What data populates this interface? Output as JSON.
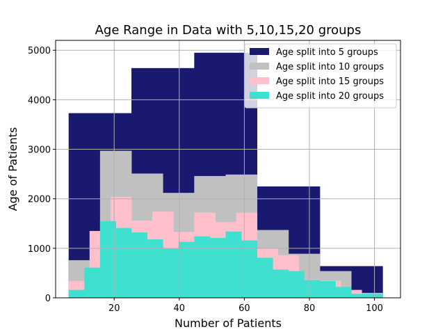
{
  "chart_data": {
    "type": "bar",
    "title": "Age Range in Data with 5,10,15,20 groups",
    "xlabel": "Number of Patients",
    "ylabel": "Age of Patients",
    "xlim": [
      2,
      108
    ],
    "ylim": [
      0,
      5200
    ],
    "xticks": [
      20,
      40,
      60,
      80,
      100
    ],
    "yticks": [
      0,
      1000,
      2000,
      3000,
      4000,
      5000
    ],
    "grid": true,
    "legend_position": "top-right",
    "series": [
      {
        "name": "Age split into 5 groups",
        "color": "#191970",
        "edges": [
          6,
          25.3,
          44.6,
          63.9,
          83.2,
          102.5
        ],
        "values": [
          3730,
          4640,
          4950,
          2250,
          640
        ]
      },
      {
        "name": "Age split into 10 groups",
        "color": "#c0c0c0",
        "edges": [
          6,
          15.65,
          25.3,
          34.95,
          44.6,
          54.25,
          63.9,
          73.55,
          83.2,
          92.85,
          102.5
        ],
        "values": [
          760,
          2970,
          2510,
          2120,
          2460,
          2490,
          1370,
          890,
          540,
          100
        ]
      },
      {
        "name": "Age split into 15 groups",
        "color": "#ffc0cb",
        "edges": [
          6,
          12.43,
          18.87,
          25.3,
          31.73,
          38.17,
          44.6,
          51.03,
          57.47,
          63.9,
          70.33,
          76.77,
          83.2,
          89.63,
          96.07,
          102.5
        ],
        "values": [
          340,
          1350,
          2040,
          1560,
          1740,
          1330,
          1720,
          1530,
          1720,
          1000,
          860,
          370,
          350,
          160,
          80
        ]
      },
      {
        "name": "Age split into 20 groups",
        "color": "#40e0d0",
        "edges": [
          6,
          10.83,
          15.65,
          20.48,
          25.3,
          30.13,
          34.95,
          39.78,
          44.6,
          49.43,
          54.25,
          59.08,
          63.9,
          68.73,
          73.55,
          78.38,
          83.2,
          88.03,
          92.85,
          97.68,
          102.5
        ],
        "values": [
          160,
          610,
          1550,
          1410,
          1320,
          1180,
          990,
          1130,
          1240,
          1210,
          1340,
          1160,
          810,
          570,
          540,
          360,
          340,
          220,
          80,
          80
        ]
      }
    ]
  }
}
